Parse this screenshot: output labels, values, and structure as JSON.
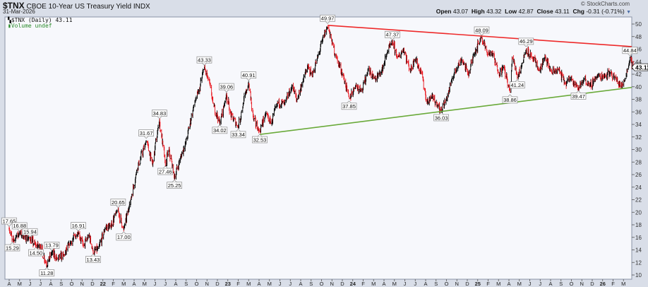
{
  "header": {
    "symbol": "$TNX",
    "name": "CBOE 10-Year US Treasury Yield INDX",
    "date": "31-Mar-2026",
    "brand": "© StockCharts.com",
    "open_label": "Open",
    "open": "43.07",
    "high_label": "High",
    "high": "43.32",
    "low_label": "Low",
    "low": "42.87",
    "close_label": "Close",
    "close": "43.11",
    "chg_label": "Chg",
    "chg": "-0.31 (-0.71%)"
  },
  "legend": {
    "price": "$TNX (Daily) 43.11",
    "volume": "Volume undef"
  },
  "chart_data": {
    "type": "ohlc-bar",
    "ylim": [
      10,
      50
    ],
    "y_ticks": [
      10,
      12,
      14,
      16,
      18,
      20,
      22,
      24,
      26,
      28,
      30,
      32,
      34,
      36,
      38,
      40,
      42,
      44,
      46,
      48,
      50
    ],
    "x_tick_labels": [
      "A",
      "M",
      "J",
      "J",
      "A",
      "S",
      "O",
      "N",
      "D",
      "22",
      "F",
      "M",
      "A",
      "M",
      "J",
      "J",
      "A",
      "S",
      "O",
      "N",
      "D",
      "23",
      "F",
      "M",
      "A",
      "M",
      "J",
      "J",
      "A",
      "S",
      "O",
      "N",
      "D",
      "24",
      "F",
      "M",
      "A",
      "M",
      "J",
      "J",
      "A",
      "S",
      "O",
      "N",
      "D",
      "25",
      "F",
      "M",
      "A",
      "M",
      "J",
      "J",
      "A",
      "S",
      "O",
      "N",
      "D",
      "26",
      "F",
      "M"
    ],
    "x_range": [
      "2021-04-01",
      "2026-03-31"
    ],
    "last_price": "43.11",
    "colors": {
      "up": "#000000",
      "down": "#e8141c",
      "resistance": "#ee2a2a",
      "support": "#6aaa3a",
      "plot_bg": "#f7f8fc"
    },
    "close_series": [
      [
        "2021-04-01",
        17.4
      ],
      [
        "2021-04-10",
        15.4
      ],
      [
        "2021-04-22",
        16.2
      ],
      [
        "2021-05-01",
        16.8
      ],
      [
        "2021-05-15",
        16.0
      ],
      [
        "2021-06-01",
        15.8
      ],
      [
        "2021-06-18",
        14.6
      ],
      [
        "2021-07-01",
        14.6
      ],
      [
        "2021-07-20",
        11.5
      ],
      [
        "2021-08-04",
        13.6
      ],
      [
        "2021-08-20",
        12.6
      ],
      [
        "2021-09-10",
        13.3
      ],
      [
        "2021-09-28",
        15.2
      ],
      [
        "2021-10-21",
        16.7
      ],
      [
        "2021-11-05",
        14.6
      ],
      [
        "2021-11-22",
        16.4
      ],
      [
        "2021-12-03",
        13.6
      ],
      [
        "2021-12-20",
        14.3
      ],
      [
        "2022-01-10",
        17.6
      ],
      [
        "2022-01-25",
        17.8
      ],
      [
        "2022-02-14",
        20.4
      ],
      [
        "2022-03-01",
        17.2
      ],
      [
        "2022-03-20",
        21.5
      ],
      [
        "2022-04-10",
        27.0
      ],
      [
        "2022-05-06",
        31.4
      ],
      [
        "2022-05-25",
        27.6
      ],
      [
        "2022-06-14",
        34.6
      ],
      [
        "2022-07-01",
        27.6
      ],
      [
        "2022-07-12",
        30.0
      ],
      [
        "2022-07-28",
        25.5
      ],
      [
        "2022-08-15",
        28.5
      ],
      [
        "2022-09-01",
        31.5
      ],
      [
        "2022-09-25",
        37.5
      ],
      [
        "2022-10-10",
        39.5
      ],
      [
        "2022-10-24",
        43.1
      ],
      [
        "2022-11-05",
        41.0
      ],
      [
        "2022-11-20",
        37.0
      ],
      [
        "2022-12-08",
        34.2
      ],
      [
        "2022-12-28",
        38.8
      ],
      [
        "2023-01-10",
        35.5
      ],
      [
        "2023-02-01",
        33.6
      ],
      [
        "2023-02-15",
        37.5
      ],
      [
        "2023-03-01",
        40.6
      ],
      [
        "2023-03-15",
        35.0
      ],
      [
        "2023-04-03",
        32.8
      ],
      [
        "2023-04-20",
        35.8
      ],
      [
        "2023-05-05",
        34.2
      ],
      [
        "2023-05-25",
        37.5
      ],
      [
        "2023-06-15",
        37.4
      ],
      [
        "2023-07-07",
        40.2
      ],
      [
        "2023-07-20",
        37.8
      ],
      [
        "2023-08-10",
        41.5
      ],
      [
        "2023-08-22",
        43.2
      ],
      [
        "2023-09-05",
        41.8
      ],
      [
        "2023-09-25",
        45.5
      ],
      [
        "2023-10-05",
        47.8
      ],
      [
        "2023-10-19",
        49.7
      ],
      [
        "2023-11-01",
        47.0
      ],
      [
        "2023-11-15",
        44.5
      ],
      [
        "2023-12-05",
        41.5
      ],
      [
        "2023-12-21",
        38.2
      ],
      [
        "2024-01-10",
        40.2
      ],
      [
        "2024-01-30",
        39.5
      ],
      [
        "2024-02-15",
        42.8
      ],
      [
        "2024-03-05",
        41.2
      ],
      [
        "2024-03-25",
        42.3
      ],
      [
        "2024-04-10",
        45.5
      ],
      [
        "2024-04-25",
        47.1
      ],
      [
        "2024-05-10",
        44.6
      ],
      [
        "2024-05-29",
        46.0
      ],
      [
        "2024-06-15",
        42.5
      ],
      [
        "2024-07-01",
        44.5
      ],
      [
        "2024-07-20",
        42.0
      ],
      [
        "2024-08-05",
        37.5
      ],
      [
        "2024-08-20",
        38.4
      ],
      [
        "2024-09-05",
        37.0
      ],
      [
        "2024-09-16",
        36.2
      ],
      [
        "2024-10-01",
        38.0
      ],
      [
        "2024-10-20",
        41.5
      ],
      [
        "2024-11-05",
        43.5
      ],
      [
        "2024-11-15",
        44.3
      ],
      [
        "2024-12-05",
        41.9
      ],
      [
        "2024-12-20",
        45.3
      ],
      [
        "2025-01-13",
        47.9
      ],
      [
        "2025-01-30",
        45.2
      ],
      [
        "2025-02-12",
        45.4
      ],
      [
        "2025-03-01",
        42.0
      ],
      [
        "2025-03-15",
        43.2
      ],
      [
        "2025-04-04",
        39.2
      ],
      [
        "2025-04-10",
        44.8
      ],
      [
        "2025-04-25",
        41.6
      ],
      [
        "2025-05-10",
        44.0
      ],
      [
        "2025-05-21",
        46.0
      ],
      [
        "2025-06-10",
        44.5
      ],
      [
        "2025-06-30",
        42.5
      ],
      [
        "2025-07-15",
        44.8
      ],
      [
        "2025-08-05",
        42.2
      ],
      [
        "2025-08-25",
        42.8
      ],
      [
        "2025-09-15",
        40.4
      ],
      [
        "2025-10-01",
        41.5
      ],
      [
        "2025-10-22",
        39.7
      ],
      [
        "2025-11-10",
        41.3
      ],
      [
        "2025-11-25",
        40.2
      ],
      [
        "2025-12-15",
        41.6
      ],
      [
        "2026-01-10",
        41.8
      ],
      [
        "2026-01-25",
        42.3
      ],
      [
        "2026-02-10",
        41.2
      ],
      [
        "2026-02-25",
        40.0
      ],
      [
        "2026-03-10",
        42.0
      ],
      [
        "2026-03-20",
        44.6
      ],
      [
        "2026-03-31",
        43.11
      ]
    ],
    "annotations": [
      {
        "date": "2021-04-01",
        "value": 17.65,
        "label": "17.65",
        "pos": "above"
      },
      {
        "date": "2021-04-10",
        "value": 15.29,
        "label": "15.29",
        "pos": "below"
      },
      {
        "date": "2021-05-01",
        "value": 16.88,
        "label": "16.88",
        "pos": "above"
      },
      {
        "date": "2021-06-01",
        "value": 15.94,
        "label": "15.94",
        "pos": "above"
      },
      {
        "date": "2021-06-18",
        "value": 14.5,
        "label": "14.50",
        "pos": "below"
      },
      {
        "date": "2021-07-20",
        "value": 11.28,
        "label": "11.28",
        "pos": "below"
      },
      {
        "date": "2021-08-04",
        "value": 13.79,
        "label": "13.79",
        "pos": "above"
      },
      {
        "date": "2021-10-21",
        "value": 16.91,
        "label": "16.91",
        "pos": "above"
      },
      {
        "date": "2021-12-03",
        "value": 13.43,
        "label": "13.43",
        "pos": "below"
      },
      {
        "date": "2022-02-14",
        "value": 20.65,
        "label": "20.65",
        "pos": "above"
      },
      {
        "date": "2022-03-01",
        "value": 17.0,
        "label": "17.00",
        "pos": "below"
      },
      {
        "date": "2022-05-06",
        "value": 31.67,
        "label": "31.67",
        "pos": "above"
      },
      {
        "date": "2022-06-14",
        "value": 34.83,
        "label": "34.83",
        "pos": "above"
      },
      {
        "date": "2022-07-01",
        "value": 27.46,
        "label": "27.46",
        "pos": "below"
      },
      {
        "date": "2022-07-28",
        "value": 25.25,
        "label": "25.25",
        "pos": "below"
      },
      {
        "date": "2022-10-24",
        "value": 43.33,
        "label": "43.33",
        "pos": "above"
      },
      {
        "date": "2022-12-08",
        "value": 34.02,
        "label": "34.02",
        "pos": "below"
      },
      {
        "date": "2022-12-28",
        "value": 39.06,
        "label": "39.06",
        "pos": "above"
      },
      {
        "date": "2023-02-01",
        "value": 33.34,
        "label": "33.34",
        "pos": "below"
      },
      {
        "date": "2023-03-01",
        "value": 40.91,
        "label": "40.91",
        "pos": "above"
      },
      {
        "date": "2023-04-03",
        "value": 32.53,
        "label": "32.53",
        "pos": "below"
      },
      {
        "date": "2023-10-19",
        "value": 49.97,
        "label": "49.97",
        "pos": "above"
      },
      {
        "date": "2023-12-21",
        "value": 37.85,
        "label": "37.85",
        "pos": "below"
      },
      {
        "date": "2024-04-25",
        "value": 47.37,
        "label": "47.37",
        "pos": "above"
      },
      {
        "date": "2024-09-16",
        "value": 36.03,
        "label": "36.03",
        "pos": "below"
      },
      {
        "date": "2025-01-13",
        "value": 48.09,
        "label": "48.09",
        "pos": "above"
      },
      {
        "date": "2025-04-04",
        "value": 38.86,
        "label": "38.86",
        "pos": "below"
      },
      {
        "date": "2025-04-25",
        "value": 41.24,
        "label": "41.24",
        "pos": "below"
      },
      {
        "date": "2025-05-21",
        "value": 46.29,
        "label": "46.29",
        "pos": "above"
      },
      {
        "date": "2025-10-22",
        "value": 39.47,
        "label": "39.47",
        "pos": "below"
      },
      {
        "date": "2026-03-20",
        "value": 44.84,
        "label": "44.84",
        "pos": "above"
      }
    ],
    "trendlines": [
      {
        "name": "resistance",
        "color": "#ee2a2a",
        "from": [
          "2023-10-19",
          49.8
        ],
        "to": [
          "2026-03-31",
          46.4
        ]
      },
      {
        "name": "support",
        "color": "#6aaa3a",
        "from": [
          "2023-04-03",
          32.4
        ],
        "to": [
          "2026-03-31",
          39.9
        ]
      }
    ]
  }
}
